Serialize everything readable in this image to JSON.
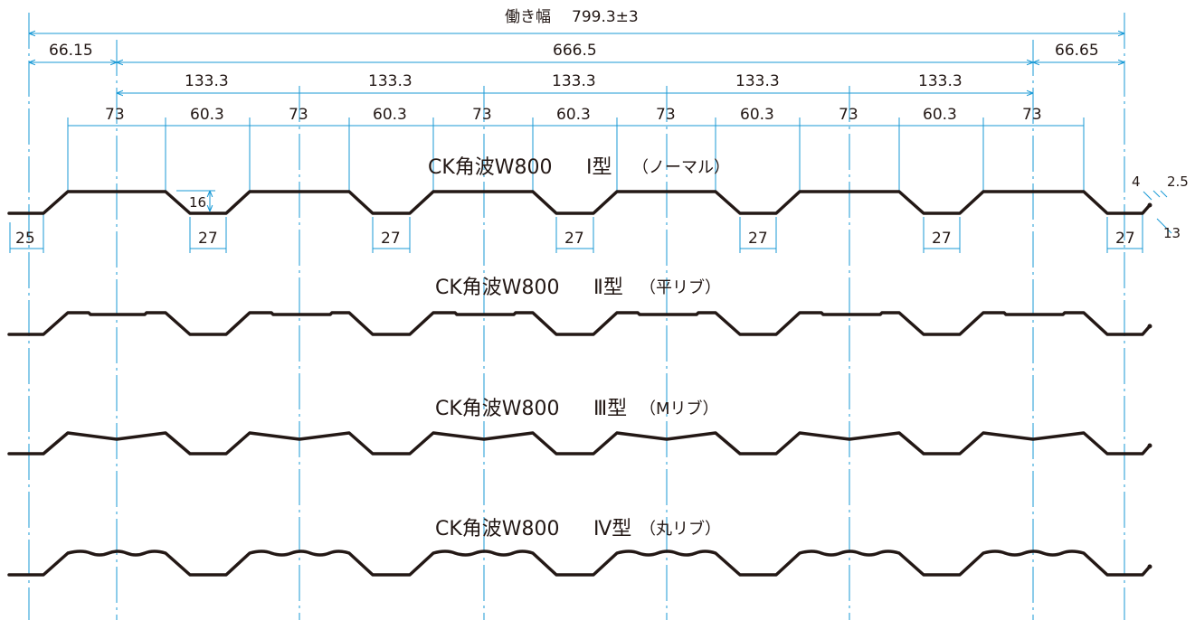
{
  "colors": {
    "dimension_line": "#1a9ad6",
    "profile": "#231815",
    "text": "#231815"
  },
  "overall": {
    "label": "働き幅",
    "value": "799.3±3"
  },
  "row1": [
    "66.15",
    "666.5",
    "66.65"
  ],
  "row2": [
    "133.3",
    "133.3",
    "133.3",
    "133.3",
    "133.3"
  ],
  "row3": [
    "73",
    "60.3",
    "73",
    "60.3",
    "73",
    "60.3",
    "73",
    "60.3",
    "73",
    "60.3",
    "73"
  ],
  "bottom_dims": [
    "25",
    "27",
    "27",
    "27",
    "27",
    "27",
    "27"
  ],
  "height_dim": "16",
  "edge_dims": {
    "a": "4",
    "b": "2.5",
    "c": "13"
  },
  "profiles": [
    {
      "name": "CK角波W800",
      "type": "Ⅰ型",
      "sub": "（ノーマル）"
    },
    {
      "name": "CK角波W800",
      "type": "Ⅱ型",
      "sub": "（平リブ）"
    },
    {
      "name": "CK角波W800",
      "type": "Ⅲ型",
      "sub": "（Mリブ）"
    },
    {
      "name": "CK角波W800",
      "type": "Ⅳ型",
      "sub": "（丸リブ）"
    }
  ]
}
